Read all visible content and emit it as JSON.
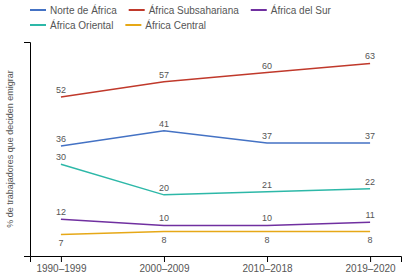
{
  "chart_data": {
    "type": "line",
    "ylabel": "% de trabajadores que deciden emigrar",
    "categories": [
      "1990–1999",
      "2000–2009",
      "2010–2018",
      "2019–2020"
    ],
    "series": [
      {
        "name": "Norte de África",
        "values": [
          36,
          41,
          37,
          37
        ],
        "color": "#4472c4"
      },
      {
        "name": "África Subsahariana",
        "values": [
          52,
          57,
          60,
          63
        ],
        "color": "#c0392b"
      },
      {
        "name": "África del Sur",
        "values": [
          12,
          10,
          10,
          11
        ],
        "color": "#7030a0"
      },
      {
        "name": "África Oriental",
        "values": [
          30,
          20,
          21,
          22
        ],
        "color": "#2db8a8"
      },
      {
        "name": "África Central",
        "values": [
          7,
          8,
          8,
          8
        ],
        "color": "#e6a817"
      }
    ],
    "ylim": [
      0,
      70
    ],
    "yticks": [],
    "grid": false,
    "legend": "top",
    "data_labels": true,
    "tick_labels": "x"
  }
}
